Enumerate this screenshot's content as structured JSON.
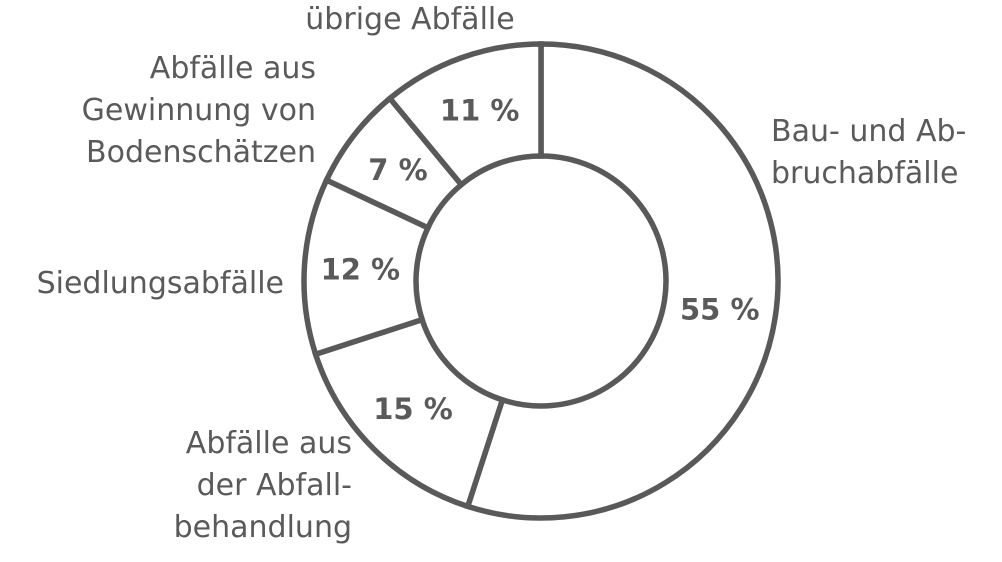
{
  "chart_data": {
    "type": "pie",
    "variant": "donut",
    "categories": [
      "Bau- und Abbruchabfälle",
      "Abfälle aus der Abfallbehandlung",
      "Siedlungsabfälle",
      "Abfälle aus Gewinnung von Bodenschätzen",
      "übrige Abfälle"
    ],
    "values": [
      55,
      15,
      12,
      7,
      11
    ],
    "value_labels": [
      "55 %",
      "15 %",
      "12 %",
      "7 %",
      "11 %"
    ],
    "category_label_lines": [
      [
        "Bau- und Ab-",
        "bruchabfälle"
      ],
      [
        "Abfälle aus",
        "der Abfall-",
        "behandlung"
      ],
      [
        "Siedlungsabfälle"
      ],
      [
        "Abfälle aus",
        "Gewinnung von",
        "Bodenschätzen"
      ],
      [
        "übrige Abfälle"
      ]
    ],
    "start_angle": "12 o'clock",
    "direction": "clockwise",
    "colors": {
      "fill": "#ffffff",
      "stroke": "#595959",
      "text": "#5a5a5a"
    },
    "legend": "none",
    "title": ""
  }
}
